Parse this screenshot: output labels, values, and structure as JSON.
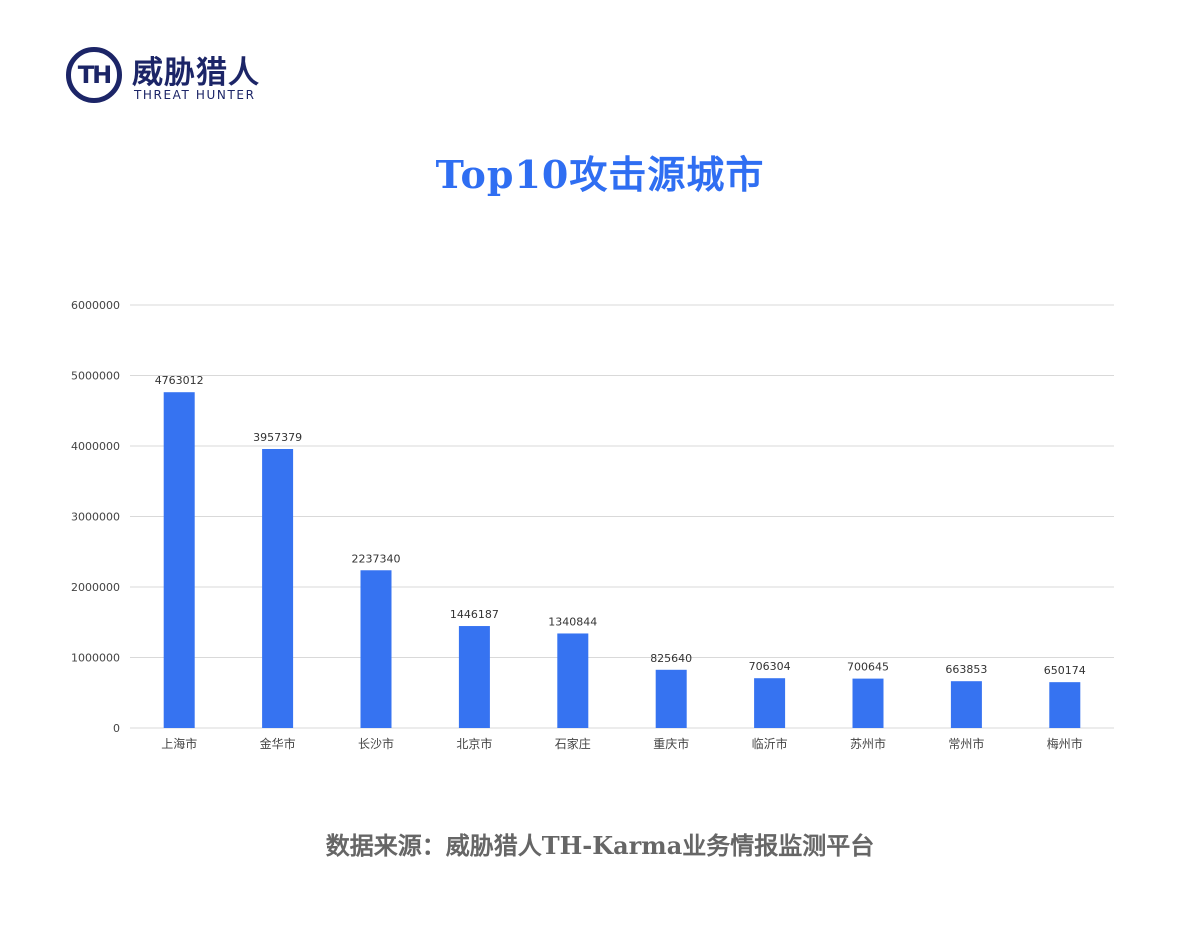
{
  "logo": {
    "mark": "TH",
    "name_cn": "威胁猎人",
    "name_en": "THREAT HUNTER"
  },
  "title": "Top10攻击源城市",
  "footer": "数据来源：威胁猎人TH-Karma业务情报监测平台",
  "colors": {
    "bar": "#3673f1",
    "title": "#2f6ef2",
    "logo": "#1c2567",
    "grid": "#d9d9d9",
    "footer": "#666666"
  },
  "chart_data": {
    "type": "bar",
    "categories": [
      "上海市",
      "金华市",
      "长沙市",
      "北京市",
      "石家庄",
      "重庆市",
      "临沂市",
      "苏州市",
      "常州市",
      "梅州市"
    ],
    "values": [
      4763012,
      3957379,
      2237340,
      1446187,
      1340844,
      825640,
      706304,
      700645,
      663853,
      650174
    ],
    "ylim": [
      0,
      6000000
    ],
    "yticks": [
      "0",
      "1000000",
      "2000000",
      "3000000",
      "4000000",
      "5000000",
      "6000000"
    ],
    "data_labels": [
      "4763012",
      "3957379",
      "2237340",
      "1446187",
      "1340844",
      "825640",
      "706304",
      "700645",
      "663853",
      "650174"
    ],
    "grid": true,
    "legend": "none"
  }
}
